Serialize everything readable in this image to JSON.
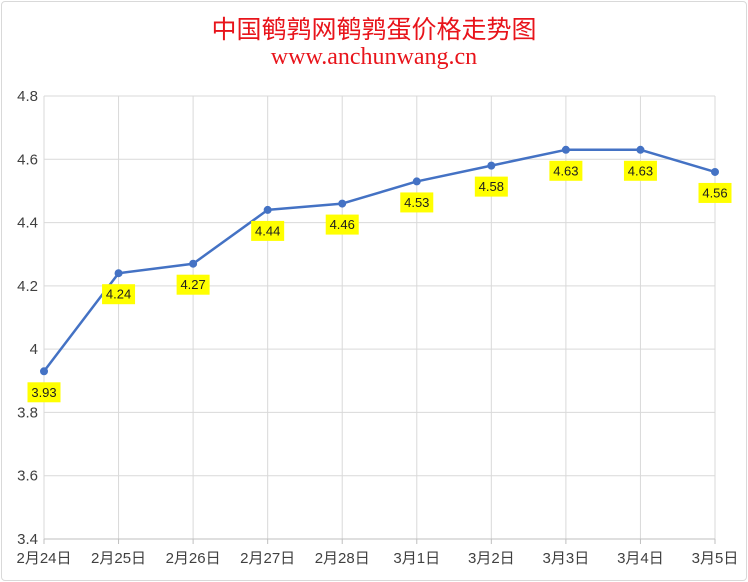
{
  "title": "中国鹌鹑网鹌鹑蛋价格走势图",
  "subtitle": "www.anchunwang.cn",
  "chart_data": {
    "type": "line",
    "title": "中国鹌鹑网鹌鹑蛋价格走势图",
    "subtitle": "www.anchunwang.cn",
    "xlabel": "",
    "ylabel": "",
    "categories": [
      "2月24日",
      "2月25日",
      "2月26日",
      "2月27日",
      "2月28日",
      "3月1日",
      "3月2日",
      "3月3日",
      "3月4日",
      "3月5日"
    ],
    "series": [
      {
        "values": [
          3.93,
          4.24,
          4.27,
          4.44,
          4.46,
          4.53,
          4.58,
          4.63,
          4.63,
          4.56
        ]
      }
    ],
    "data_labels": [
      "3.93",
      "4.24",
      "4.27",
      "4.44",
      "4.46",
      "4.53",
      "4.58",
      "4.63",
      "4.63",
      "4.56"
    ],
    "ylim": [
      3.4,
      4.8
    ],
    "yticks": [
      "3.4",
      "3.6",
      "3.8",
      "4",
      "4.2",
      "4.4",
      "4.6",
      "4.8"
    ],
    "grid": true,
    "legend": "none",
    "colors": {
      "line": "#4472c4",
      "label_bg": "#ffff00",
      "title": "#e8141b",
      "grid": "#d9d9d9"
    }
  }
}
